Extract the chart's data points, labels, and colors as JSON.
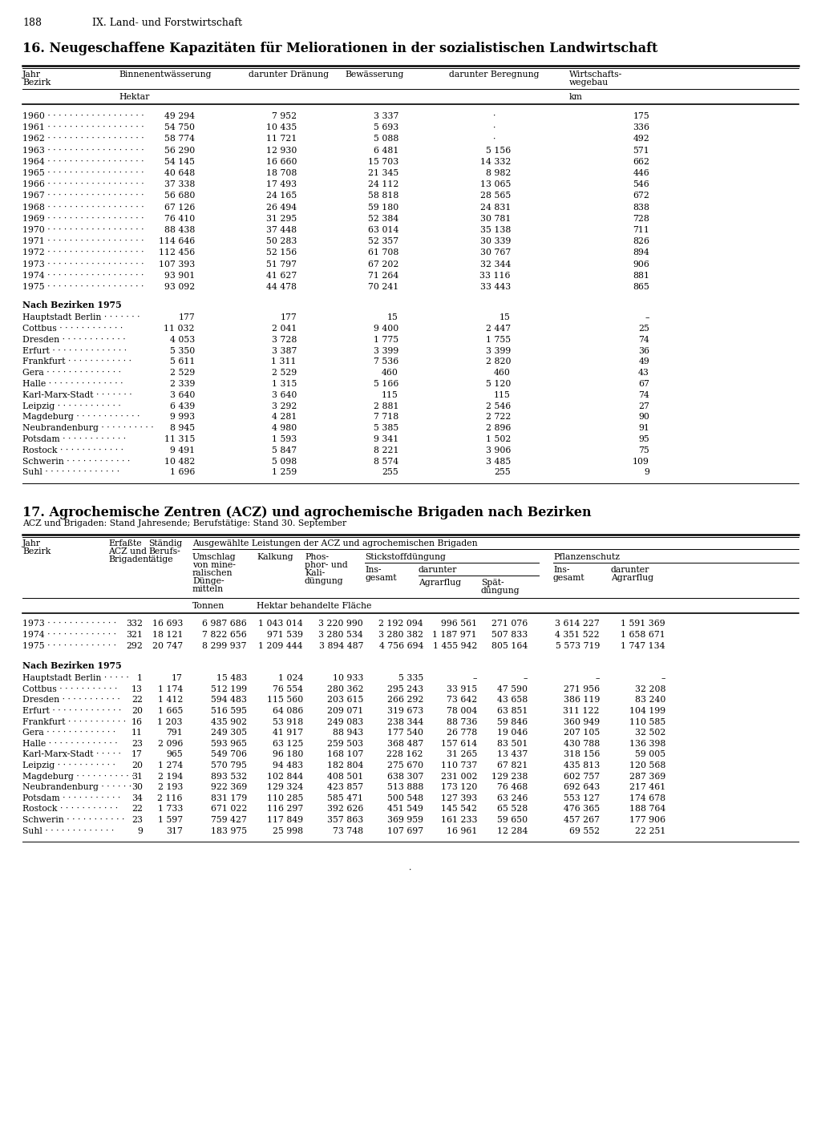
{
  "page_num": "188",
  "chapter": "IX. Land- und Forstwirtschaft",
  "table1": {
    "title": "16. Neugeschaffene Kapazitäten für Meliorationen in der sozialistischen Landwirtschaft",
    "years_data": [
      [
        "1960",
        "49 294",
        "7 952",
        "3 337",
        "·",
        "175"
      ],
      [
        "1961",
        "54 750",
        "10 435",
        "5 693",
        "·",
        "336"
      ],
      [
        "1962",
        "58 774",
        "11 721",
        "5 088",
        "·",
        "492"
      ],
      [
        "1963",
        "56 290",
        "12 930",
        "6 481",
        "5 156",
        "571"
      ],
      [
        "1964",
        "54 145",
        "16 660",
        "15 703",
        "14 332",
        "662"
      ],
      [
        "1965",
        "40 648",
        "18 708",
        "21 345",
        "8 982",
        "446"
      ],
      [
        "1966",
        "37 338",
        "17 493",
        "24 112",
        "13 065",
        "546"
      ],
      [
        "1967",
        "56 680",
        "24 165",
        "58 818",
        "28 565",
        "672"
      ],
      [
        "1968",
        "67 126",
        "26 494",
        "59 180",
        "24 831",
        "838"
      ],
      [
        "1969",
        "76 410",
        "31 295",
        "52 384",
        "30 781",
        "728"
      ],
      [
        "1970",
        "88 438",
        "37 448",
        "63 014",
        "35 138",
        "711"
      ],
      [
        "1971",
        "114 646",
        "50 283",
        "52 357",
        "30 339",
        "826"
      ],
      [
        "1972",
        "112 456",
        "52 156",
        "61 708",
        "30 767",
        "894"
      ],
      [
        "1973",
        "107 393",
        "51 797",
        "67 202",
        "32 344",
        "906"
      ],
      [
        "1974",
        "93 901",
        "41 627",
        "71 264",
        "33 116",
        "881"
      ],
      [
        "1975",
        "93 092",
        "44 478",
        "70 241",
        "33 443",
        "865"
      ]
    ],
    "bezirk_header": "Nach Bezirken 1975",
    "bezirk_data": [
      [
        "Hauptstadt Berlin",
        "177",
        "177",
        "15",
        "15",
        "–"
      ],
      [
        "Cottbus",
        "11 032",
        "2 041",
        "9 400",
        "2 447",
        "25"
      ],
      [
        "Dresden",
        "4 053",
        "3 728",
        "1 775",
        "1 755",
        "74"
      ],
      [
        "Erfurt",
        "5 350",
        "3 387",
        "3 399",
        "3 399",
        "36"
      ],
      [
        "Frankfurt",
        "5 611",
        "1 311",
        "7 536",
        "2 820",
        "49"
      ],
      [
        "Gera",
        "2 529",
        "2 529",
        "460",
        "460",
        "43"
      ],
      [
        "Halle",
        "2 339",
        "1 315",
        "5 166",
        "5 120",
        "67"
      ],
      [
        "Karl-Marx-Stadt",
        "3 640",
        "3 640",
        "115",
        "115",
        "74"
      ],
      [
        "Leipzig",
        "6 439",
        "3 292",
        "2 881",
        "2 546",
        "27"
      ],
      [
        "Magdeburg",
        "9 993",
        "4 281",
        "7 718",
        "2 722",
        "90"
      ],
      [
        "Neubrandenburg",
        "8 945",
        "4 980",
        "5 385",
        "2 896",
        "91"
      ],
      [
        "Potsdam",
        "11 315",
        "1 593",
        "9 341",
        "1 502",
        "95"
      ],
      [
        "Rostock",
        "9 491",
        "5 847",
        "8 221",
        "3 906",
        "75"
      ],
      [
        "Schwerin",
        "10 482",
        "5 098",
        "8 574",
        "3 485",
        "109"
      ],
      [
        "Suhl",
        "1 696",
        "1 259",
        "255",
        "255",
        "9"
      ]
    ]
  },
  "table2": {
    "title": "17. Agrochemische Zentren (ACZ) und agrochemische Brigaden nach Bezirken",
    "subtitle": "ACZ und Brigaden: Stand Jahresende; Berufstätige: Stand 30. September",
    "years_data": [
      [
        "1973",
        "332",
        "16 693",
        "6 987 686",
        "1 043 014",
        "3 220 990",
        "2 192 094",
        "996 561",
        "271 076",
        "3 614 227",
        "1 591 369"
      ],
      [
        "1974",
        "321",
        "18 121",
        "7 822 656",
        "971 539",
        "3 280 534",
        "3 280 382",
        "1 187 971",
        "507 833",
        "4 351 522",
        "1 658 671"
      ],
      [
        "1975",
        "292",
        "20 747",
        "8 299 937",
        "1 209 444",
        "3 894 487",
        "4 756 694",
        "1 455 942",
        "805 164",
        "5 573 719",
        "1 747 134"
      ]
    ],
    "bezirk_header": "Nach Bezirken 1975",
    "bezirk_data": [
      [
        "Hauptstadt Berlin",
        "1",
        "17",
        "15 483",
        "1 024",
        "10 933",
        "5 335",
        "–",
        "–",
        "–",
        "–"
      ],
      [
        "Cottbus",
        "13",
        "1 174",
        "512 199",
        "76 554",
        "280 362",
        "295 243",
        "33 915",
        "47 590",
        "271 956",
        "32 208"
      ],
      [
        "Dresden",
        "22",
        "1 412",
        "594 483",
        "115 560",
        "203 615",
        "266 292",
        "73 642",
        "43 658",
        "386 119",
        "83 240"
      ],
      [
        "Erfurt",
        "20",
        "1 665",
        "516 595",
        "64 086",
        "209 071",
        "319 673",
        "78 004",
        "63 851",
        "311 122",
        "104 199"
      ],
      [
        "Frankfurt",
        "16",
        "1 203",
        "435 902",
        "53 918",
        "249 083",
        "238 344",
        "88 736",
        "59 846",
        "360 949",
        "110 585"
      ],
      [
        "Gera",
        "11",
        "791",
        "249 305",
        "41 917",
        "88 943",
        "177 540",
        "26 778",
        "19 046",
        "207 105",
        "32 502"
      ],
      [
        "Halle",
        "23",
        "2 096",
        "593 965",
        "63 125",
        "259 503",
        "368 487",
        "157 614",
        "83 501",
        "430 788",
        "136 398"
      ],
      [
        "Karl-Marx-Stadt",
        "17",
        "965",
        "549 706",
        "96 180",
        "168 107",
        "228 162",
        "31 265",
        "13 437",
        "318 156",
        "59 005"
      ],
      [
        "Leipzig",
        "20",
        "1 274",
        "570 795",
        "94 483",
        "182 804",
        "275 670",
        "110 737",
        "67 821",
        "435 813",
        "120 568"
      ],
      [
        "Magdeburg",
        "31",
        "2 194",
        "893 532",
        "102 844",
        "408 501",
        "638 307",
        "231 002",
        "129 238",
        "602 757",
        "287 369"
      ],
      [
        "Neubrandenburg",
        "30",
        "2 193",
        "922 369",
        "129 324",
        "423 857",
        "513 888",
        "173 120",
        "76 468",
        "692 643",
        "217 461"
      ],
      [
        "Potsdam",
        "34",
        "2 116",
        "831 179",
        "110 285",
        "585 471",
        "500 548",
        "127 393",
        "63 246",
        "553 127",
        "174 678"
      ],
      [
        "Rostock",
        "22",
        "1 733",
        "671 022",
        "116 297",
        "392 626",
        "451 549",
        "145 542",
        "65 528",
        "476 365",
        "188 764"
      ],
      [
        "Schwerin",
        "23",
        "1 597",
        "759 427",
        "117 849",
        "357 863",
        "369 959",
        "161 233",
        "59 650",
        "457 267",
        "177 906"
      ],
      [
        "Suhl",
        "9",
        "317",
        "183 975",
        "25 998",
        "73 748",
        "107 697",
        "16 961",
        "12 284",
        "69 552",
        "22 251"
      ]
    ]
  }
}
